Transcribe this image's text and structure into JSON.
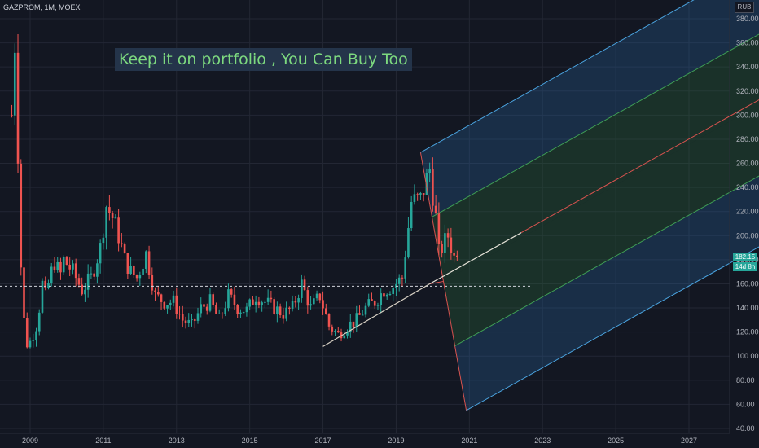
{
  "header": {
    "symbol_line": "GAZPROM, 1M, MOEX",
    "currency": "RUB"
  },
  "annotation": {
    "text": "Keep it on portfolio , You Can Buy Too"
  },
  "price_tags": {
    "last_price": "182.15",
    "countdown": "14d 8h"
  },
  "colors": {
    "background": "#131722",
    "up": "#26a69a",
    "down": "#ef5350",
    "trend_line": "#d9d2c5",
    "median_line": "#d9534f",
    "outer_band": "#4aa3df",
    "inner_band": "#3f9e55",
    "annotation_text": "#7dd97f"
  },
  "chart_data": {
    "type": "candlestick",
    "title": "GAZPROM, 1M, MOEX",
    "x_axis": {
      "range": [
        "2008-07",
        "2028-04"
      ],
      "ticks": [
        "2009",
        "2011",
        "2013",
        "2015",
        "2017",
        "2019",
        "2021",
        "2023",
        "2025",
        "2027"
      ]
    },
    "y_axis": {
      "range": [
        40,
        395
      ],
      "ticks": [
        40,
        60,
        80,
        100,
        120,
        140,
        160,
        180,
        200,
        220,
        240,
        260,
        280,
        300,
        320,
        340,
        360,
        380
      ],
      "tick_labels": [
        "40.00",
        "60.00",
        "80.00",
        "100.00",
        "120.00",
        "140.00",
        "160.00",
        "180.00",
        "200.00",
        "220.00",
        "240.00",
        "260.00",
        "280.00",
        "300.00",
        "320.00",
        "340.00",
        "360.00",
        "380.00"
      ],
      "position": "right"
    },
    "grid": true,
    "monthly_close_approx": [
      {
        "x": "2008-07",
        "close": 300
      },
      {
        "x": "2008-08",
        "close": 360
      },
      {
        "x": "2008-09",
        "close": 270
      },
      {
        "x": "2008-10",
        "close": 175
      },
      {
        "x": "2008-11",
        "close": 130
      },
      {
        "x": "2008-12",
        "close": 110
      },
      {
        "x": "2009-01",
        "close": 112
      },
      {
        "x": "2009-02",
        "close": 118
      },
      {
        "x": "2009-03",
        "close": 125
      },
      {
        "x": "2009-04",
        "close": 140
      },
      {
        "x": "2009-05",
        "close": 160
      },
      {
        "x": "2009-06",
        "close": 150
      },
      {
        "x": "2009-07",
        "close": 160
      },
      {
        "x": "2009-08",
        "close": 170
      },
      {
        "x": "2009-09",
        "close": 178
      },
      {
        "x": "2009-10",
        "close": 172
      },
      {
        "x": "2009-11",
        "close": 168
      },
      {
        "x": "2009-12",
        "close": 180
      },
      {
        "x": "2010-03",
        "close": 170
      },
      {
        "x": "2010-06",
        "close": 155
      },
      {
        "x": "2010-09",
        "close": 165
      },
      {
        "x": "2010-12",
        "close": 190
      },
      {
        "x": "2011-02",
        "close": 225
      },
      {
        "x": "2011-04",
        "close": 215
      },
      {
        "x": "2011-06",
        "close": 200
      },
      {
        "x": "2011-08",
        "close": 180
      },
      {
        "x": "2011-10",
        "close": 170
      },
      {
        "x": "2011-12",
        "close": 165
      },
      {
        "x": "2012-03",
        "close": 185
      },
      {
        "x": "2012-06",
        "close": 150
      },
      {
        "x": "2012-09",
        "close": 145
      },
      {
        "x": "2012-12",
        "close": 145
      },
      {
        "x": "2013-03",
        "close": 130
      },
      {
        "x": "2013-06",
        "close": 125
      },
      {
        "x": "2013-09",
        "close": 140
      },
      {
        "x": "2013-12",
        "close": 145
      },
      {
        "x": "2014-03",
        "close": 130
      },
      {
        "x": "2014-06",
        "close": 150
      },
      {
        "x": "2014-09",
        "close": 140
      },
      {
        "x": "2014-12",
        "close": 138
      },
      {
        "x": "2015-03",
        "close": 150
      },
      {
        "x": "2015-06",
        "close": 145
      },
      {
        "x": "2015-09",
        "close": 140
      },
      {
        "x": "2015-12",
        "close": 135
      },
      {
        "x": "2016-03",
        "close": 140
      },
      {
        "x": "2016-06",
        "close": 160
      },
      {
        "x": "2016-09",
        "close": 140
      },
      {
        "x": "2016-12",
        "close": 150
      },
      {
        "x": "2017-03",
        "close": 125
      },
      {
        "x": "2017-06",
        "close": 118
      },
      {
        "x": "2017-09",
        "close": 125
      },
      {
        "x": "2017-12",
        "close": 130
      },
      {
        "x": "2018-03",
        "close": 140
      },
      {
        "x": "2018-06",
        "close": 145
      },
      {
        "x": "2018-09",
        "close": 155
      },
      {
        "x": "2018-12",
        "close": 158
      },
      {
        "x": "2019-03",
        "close": 165
      },
      {
        "x": "2019-06",
        "close": 228
      },
      {
        "x": "2019-09",
        "close": 230
      },
      {
        "x": "2019-12",
        "close": 255
      },
      {
        "x": "2020-02",
        "close": 215
      },
      {
        "x": "2020-03",
        "close": 185
      },
      {
        "x": "2020-06",
        "close": 200
      },
      {
        "x": "2020-08",
        "close": 182
      },
      {
        "x": "2020-09",
        "close": 182.15
      }
    ],
    "horizontal_line": {
      "y": 158,
      "style": "dashed"
    },
    "trend_line": {
      "from": {
        "x": "2017-01",
        "y": 108
      },
      "to": {
        "x": "2019-12",
        "y": 160
      }
    },
    "pitchfork": {
      "pivot": {
        "x": "2019-12",
        "y": 160
      },
      "upper_anchor": {
        "x": "2019-09",
        "y": 269
      },
      "lower_anchor": {
        "x": "2020-12",
        "y": 55
      },
      "median_extends_to": {
        "x": "2028-03",
        "y": 300
      },
      "bands": [
        "outer-upper",
        "inner-upper",
        "median",
        "inner-lower",
        "outer-lower"
      ]
    }
  }
}
